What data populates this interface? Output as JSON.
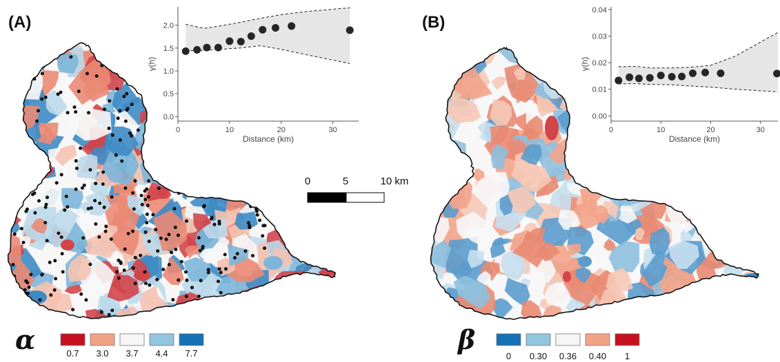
{
  "panels": [
    {
      "label": "(A)",
      "symbol": "α",
      "legend": {
        "labels": [
          "0.7",
          "3.0",
          "3.7",
          "4.4",
          "7.7"
        ],
        "colors": [
          "#c7101f",
          "#f3a384",
          "#f6f6f6",
          "#92c5de",
          "#1471b6"
        ]
      },
      "map_palette": [
        "#d2454b",
        "#ea8a74",
        "#f4c2b1",
        "#f7f7f7",
        "#bcd9ea",
        "#7db6d9",
        "#3e8bc4"
      ]
    },
    {
      "label": "(B)",
      "symbol": "β",
      "legend": {
        "labels": [
          "0",
          "0.30",
          "0.36",
          "0.40",
          "1"
        ],
        "colors": [
          "#1471b6",
          "#92c5de",
          "#f6f6f6",
          "#f3a384",
          "#c7101f"
        ]
      },
      "map_palette": [
        "#e98a72",
        "#f2a48b",
        "#f6c8b6",
        "#f7f7f7",
        "#c6dfee",
        "#8fbfdd",
        "#5b9ccd"
      ]
    }
  ],
  "scale_bar": {
    "labels": [
      "0",
      "5",
      "10 km"
    ]
  },
  "chart_data": [
    {
      "type": "scatter",
      "title": "",
      "xlabel": "Distance (km)",
      "ylabel": "γ(h)",
      "xlim": [
        0,
        35
      ],
      "ylim": [
        -0.1,
        2.4
      ],
      "xticks": [
        0,
        10,
        20,
        30
      ],
      "yticks": [
        0.0,
        0.5,
        1.0,
        1.5,
        2.0
      ],
      "ytick_labels": [
        "0.0",
        "0.5",
        "1.0",
        "1.5",
        "2.0"
      ],
      "grid": false,
      "x": [
        1.5,
        3.7,
        5.6,
        7.8,
        10.0,
        12.2,
        14.2,
        16.4,
        18.9,
        22.0,
        33.3
      ],
      "y": [
        1.43,
        1.46,
        1.51,
        1.51,
        1.65,
        1.64,
        1.76,
        1.9,
        1.94,
        1.98,
        1.89
      ],
      "envelope_upper": [
        [
          1.5,
          2.02
        ],
        [
          5,
          1.93
        ],
        [
          8,
          1.98
        ],
        [
          12,
          2.06
        ],
        [
          16,
          2.15
        ],
        [
          20,
          2.23
        ],
        [
          25,
          2.3
        ],
        [
          33.3,
          2.38
        ]
      ],
      "envelope_lower": [
        [
          1.5,
          1.44
        ],
        [
          5,
          1.45
        ],
        [
          8,
          1.47
        ],
        [
          12,
          1.5
        ],
        [
          16,
          1.55
        ],
        [
          20,
          1.47
        ],
        [
          25,
          1.35
        ],
        [
          33.3,
          1.16
        ]
      ]
    },
    {
      "type": "scatter",
      "title": "",
      "xlabel": "Distance (km)",
      "ylabel": "γ(h)",
      "xlim": [
        0,
        33.5
      ],
      "ylim": [
        -0.002,
        0.041
      ],
      "xticks": [
        0,
        10,
        20,
        30
      ],
      "yticks": [
        0.0,
        0.01,
        0.02,
        0.03,
        0.04
      ],
      "ytick_labels": [
        "0.00",
        "0.01",
        "0.02",
        "0.03",
        "0.04"
      ],
      "grid": false,
      "x": [
        1.5,
        3.7,
        5.6,
        7.8,
        10.0,
        12.2,
        14.2,
        16.4,
        18.9,
        22.0,
        33.3
      ],
      "y": [
        0.0133,
        0.0145,
        0.0141,
        0.0143,
        0.0152,
        0.0147,
        0.0148,
        0.016,
        0.0163,
        0.016,
        0.0159
      ],
      "envelope_upper": [
        [
          1.5,
          0.0185
        ],
        [
          5,
          0.0186
        ],
        [
          8,
          0.018
        ],
        [
          12,
          0.018
        ],
        [
          16,
          0.0183
        ],
        [
          20,
          0.019
        ],
        [
          25,
          0.0225
        ],
        [
          33.5,
          0.0314
        ]
      ],
      "envelope_lower": [
        [
          1.5,
          0.012
        ],
        [
          5,
          0.0121
        ],
        [
          8,
          0.0118
        ],
        [
          12,
          0.0117
        ],
        [
          16,
          0.0112
        ],
        [
          20,
          0.0108
        ],
        [
          25,
          0.01
        ],
        [
          33.5,
          0.009
        ]
      ]
    }
  ]
}
